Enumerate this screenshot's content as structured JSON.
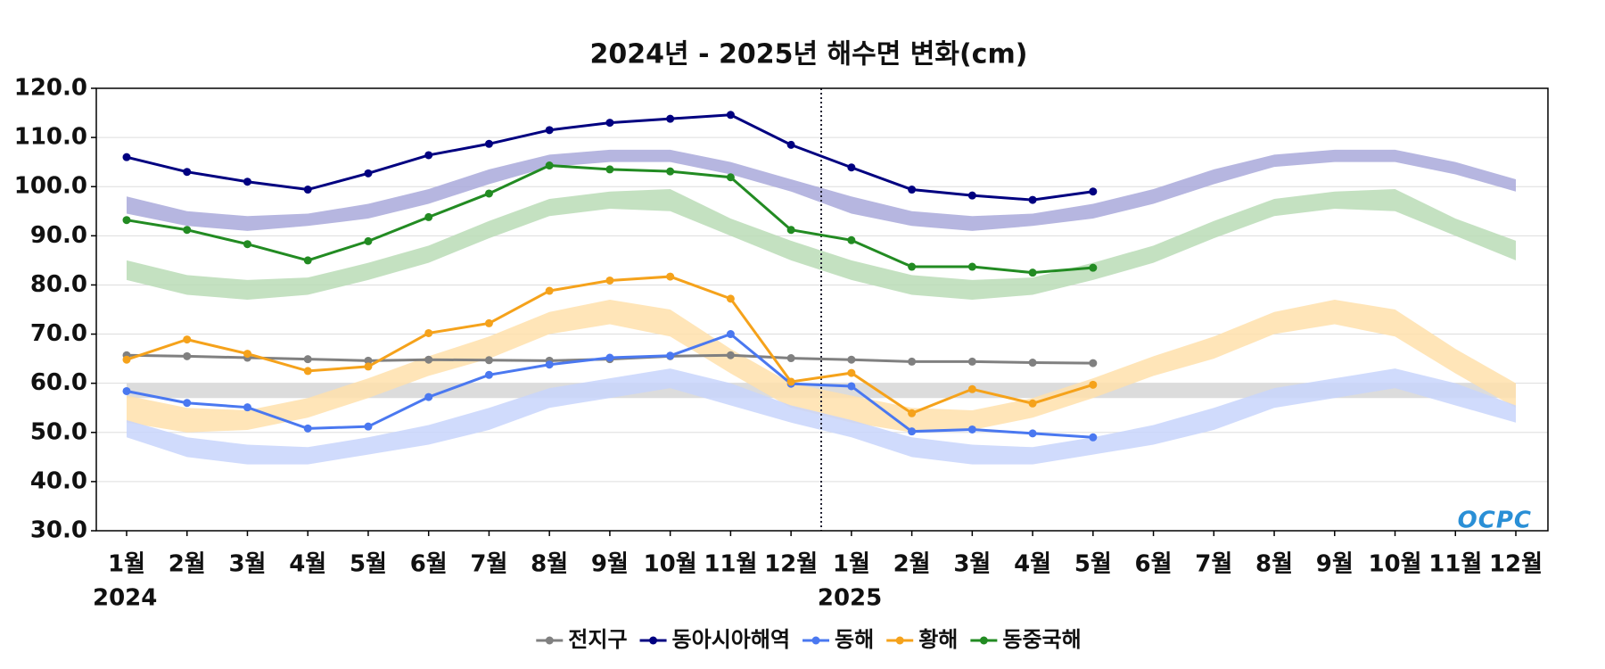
{
  "chart_data": {
    "type": "line",
    "title": "2024년 - 2025년 해수면 변화(cm)",
    "categories": [
      "1월",
      "2월",
      "3월",
      "4월",
      "5월",
      "6월",
      "7월",
      "8월",
      "9월",
      "10월",
      "11월",
      "12월",
      "1월",
      "2월",
      "3월",
      "4월",
      "5월",
      "6월",
      "7월",
      "8월",
      "9월",
      "10월",
      "11월",
      "12월"
    ],
    "years": [
      "2024",
      "2025"
    ],
    "logo": "OCPC",
    "ylim": [
      30,
      120
    ],
    "yticks": [
      {
        "value": 30,
        "label": "30.0"
      },
      {
        "value": 40,
        "label": "40.0"
      },
      {
        "value": 50,
        "label": "50.0"
      },
      {
        "value": 60,
        "label": "60.0"
      },
      {
        "value": 70,
        "label": "70.0"
      },
      {
        "value": 80,
        "label": "80.0"
      },
      {
        "value": 90,
        "label": "90.0"
      },
      {
        "value": 100,
        "label": "100.0"
      },
      {
        "value": 110,
        "label": "110.0"
      },
      {
        "value": 120,
        "label": "120.0"
      }
    ],
    "grid": true,
    "legend": "bottom",
    "bands": [
      {
        "color": "#d6d6d6",
        "low": [
          57,
          57,
          57,
          57,
          57,
          57,
          57,
          57,
          57,
          57,
          57,
          57
        ],
        "high": [
          60,
          60,
          60,
          60,
          60,
          60,
          60,
          60,
          60,
          60,
          60,
          60
        ]
      },
      {
        "color": "#a9a9db",
        "low": [
          94.5,
          92,
          91,
          92,
          93.5,
          96.5,
          100.5,
          104,
          105,
          105,
          102.5,
          99
        ],
        "high": [
          98,
          95,
          94,
          94.5,
          96.5,
          99.5,
          103.5,
          106.5,
          107.5,
          107.5,
          105,
          101.5
        ]
      },
      {
        "color": "#badcb6",
        "low": [
          81,
          78,
          77,
          78,
          81,
          84.5,
          89.5,
          94,
          95.5,
          95,
          90,
          85
        ],
        "high": [
          85,
          82,
          81,
          81.5,
          84.5,
          88,
          93,
          97.5,
          99,
          99.5,
          93.5,
          89
        ]
      },
      {
        "color": "#ffe1ab",
        "low": [
          52,
          50,
          50.5,
          53,
          57,
          61.5,
          65,
          70,
          72,
          69.5,
          62,
          55
        ],
        "high": [
          57.5,
          55,
          54.5,
          57,
          61,
          65.5,
          69.5,
          74.5,
          77,
          75,
          67,
          60
        ]
      },
      {
        "color": "#c8d5fc",
        "low": [
          49,
          45,
          43.5,
          43.5,
          45.5,
          47.5,
          50.5,
          55,
          57,
          59,
          55.5,
          52
        ],
        "high": [
          52.5,
          49,
          47.5,
          47,
          49,
          51.5,
          55,
          59,
          61,
          63,
          60,
          55.5
        ]
      }
    ],
    "series": [
      {
        "name": "전지구",
        "color": "#808080",
        "values": [
          65.7,
          65.5,
          65.2,
          64.9,
          64.6,
          64.8,
          64.7,
          64.6,
          64.9,
          65.5,
          65.7,
          65.1,
          64.8,
          64.4,
          64.4,
          64.2,
          64.1,
          null,
          null,
          null,
          null,
          null,
          null,
          null
        ]
      },
      {
        "name": "동아시아해역",
        "color": "#000080",
        "values": [
          106.0,
          103.0,
          101.0,
          99.4,
          102.7,
          106.4,
          108.7,
          111.5,
          113.0,
          113.8,
          114.6,
          108.5,
          103.9,
          99.4,
          98.2,
          97.3,
          99.0,
          null,
          null,
          null,
          null,
          null,
          null,
          null
        ]
      },
      {
        "name": "동해",
        "color": "#4a78f0",
        "values": [
          58.4,
          56.0,
          55.1,
          50.8,
          51.2,
          57.2,
          61.7,
          63.8,
          65.2,
          65.6,
          70.0,
          59.9,
          59.4,
          50.2,
          50.6,
          49.8,
          49.0,
          null,
          null,
          null,
          null,
          null,
          null,
          null
        ]
      },
      {
        "name": "황해",
        "color": "#f5a21b",
        "values": [
          64.8,
          68.9,
          66.0,
          62.5,
          63.4,
          70.2,
          72.2,
          78.8,
          80.9,
          81.7,
          77.2,
          60.3,
          62.1,
          53.9,
          58.8,
          55.9,
          59.7,
          null,
          null,
          null,
          null,
          null,
          null,
          null
        ]
      },
      {
        "name": "동중국해",
        "color": "#228b22",
        "values": [
          93.2,
          91.2,
          88.3,
          85.0,
          88.9,
          93.8,
          98.6,
          104.3,
          103.5,
          103.1,
          101.9,
          91.2,
          89.1,
          83.7,
          83.7,
          82.5,
          83.5,
          null,
          null,
          null,
          null,
          null,
          null,
          null
        ]
      }
    ]
  }
}
